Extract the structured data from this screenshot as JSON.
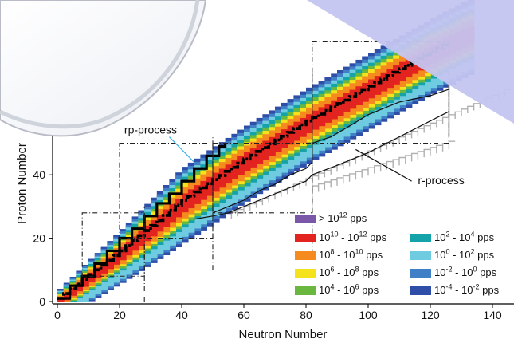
{
  "chart_data": {
    "type": "heatmap",
    "title": "",
    "xlabel": "Neutron Number",
    "ylabel": "Proton Number",
    "xlim": [
      -1,
      145
    ],
    "ylim": [
      -1,
      75
    ],
    "x_ticks": [
      0,
      20,
      40,
      60,
      80,
      100,
      120,
      140
    ],
    "y_ticks": [
      0,
      20,
      40
    ],
    "legend_placement": "bottom-right",
    "bands": [
      {
        "level": "10^-4 - 10^-2 pps",
        "color": "#2f4ea8",
        "width": 11
      },
      {
        "level": "10^-2 - 10^0 pps",
        "color": "#3f7fc6",
        "width": 10
      },
      {
        "level": "10^0 - 10^2 pps",
        "color": "#6fcbe0",
        "width": 9
      },
      {
        "level": "10^2 - 10^4 pps",
        "color": "#14a3a8",
        "width": 8
      },
      {
        "level": "10^4 - 10^6 pps",
        "color": "#6ab740",
        "width": 7
      },
      {
        "level": "10^6 - 10^8 pps",
        "color": "#f4e21c",
        "width": 6
      },
      {
        "level": "10^8 - 10^10 pps",
        "color": "#f58a1f",
        "width": 5
      },
      {
        "level": "10^10 - 10^12 pps",
        "color": "#e3231f",
        "width": 3
      }
    ],
    "valley_center_N": [
      0,
      20,
      40,
      60,
      80,
      100,
      120,
      130
    ],
    "valley_center_Z": [
      0,
      15,
      31,
      44,
      56,
      67,
      78,
      83
    ],
    "rp_process_path": {
      "N": [
        0,
        4,
        8,
        12,
        16,
        20,
        24,
        28,
        32,
        36,
        40,
        44,
        48,
        52,
        54
      ],
      "Z": [
        1,
        5,
        8,
        12,
        16,
        20,
        23,
        27,
        31,
        34,
        38,
        42,
        46,
        49,
        50
      ]
    },
    "r_process_path": {
      "N": [
        50,
        55,
        60,
        65,
        70,
        75,
        80,
        82,
        82,
        88,
        95,
        100,
        105,
        110,
        115,
        120,
        126,
        126
      ],
      "Z": [
        28,
        30,
        32,
        35,
        37,
        40,
        42,
        44,
        50,
        52,
        56,
        59,
        61,
        63,
        64,
        65,
        67,
        72
      ]
    },
    "r_process_lower_path": {
      "N": [
        44,
        50,
        55,
        60,
        65,
        70,
        75,
        80,
        82,
        90,
        100,
        110,
        120,
        126
      ],
      "Z": [
        26,
        27,
        28,
        30,
        32,
        34,
        36,
        38,
        40,
        43,
        47,
        52,
        57,
        60
      ]
    },
    "annotations": [
      {
        "text": "rp-process",
        "x": 30,
        "y": 53
      },
      {
        "text": "r-process",
        "x": 116,
        "y": 37
      }
    ],
    "legend_entries": [
      {
        "base": "> 10",
        "exp": "12",
        "suffix": " pps",
        "color": "#7b57a8"
      },
      {
        "base": "10",
        "exp": "10",
        "mid": " - 10",
        "exp2": "12",
        "suffix": " pps",
        "color": "#e3231f"
      },
      {
        "base": "10",
        "exp": "8",
        "mid": " - 10",
        "exp2": "10",
        "suffix": " pps",
        "color": "#f58a1f"
      },
      {
        "base": "10",
        "exp": "6",
        "mid": " - 10",
        "exp2": "8",
        "suffix": " pps",
        "color": "#f4e21c"
      },
      {
        "base": "10",
        "exp": "4",
        "mid": " - 10",
        "exp2": "6",
        "suffix": " pps",
        "color": "#6ab740"
      },
      {
        "base": "10",
        "exp": "2",
        "mid": " - 10",
        "exp2": "4",
        "suffix": " pps",
        "color": "#14a3a8"
      },
      {
        "base": "10",
        "exp": "0",
        "mid": " - 10",
        "exp2": "2",
        "suffix": " pps",
        "color": "#6fcbe0"
      },
      {
        "base": "10",
        "exp": "-2",
        "mid": " - 10",
        "exp2": "0",
        "suffix": " pps",
        "color": "#3f7fc6"
      },
      {
        "base": "10",
        "exp": "-4",
        "mid": " - 10",
        "exp2": "-2",
        "suffix": " pps",
        "color": "#2f4ea8"
      }
    ]
  }
}
